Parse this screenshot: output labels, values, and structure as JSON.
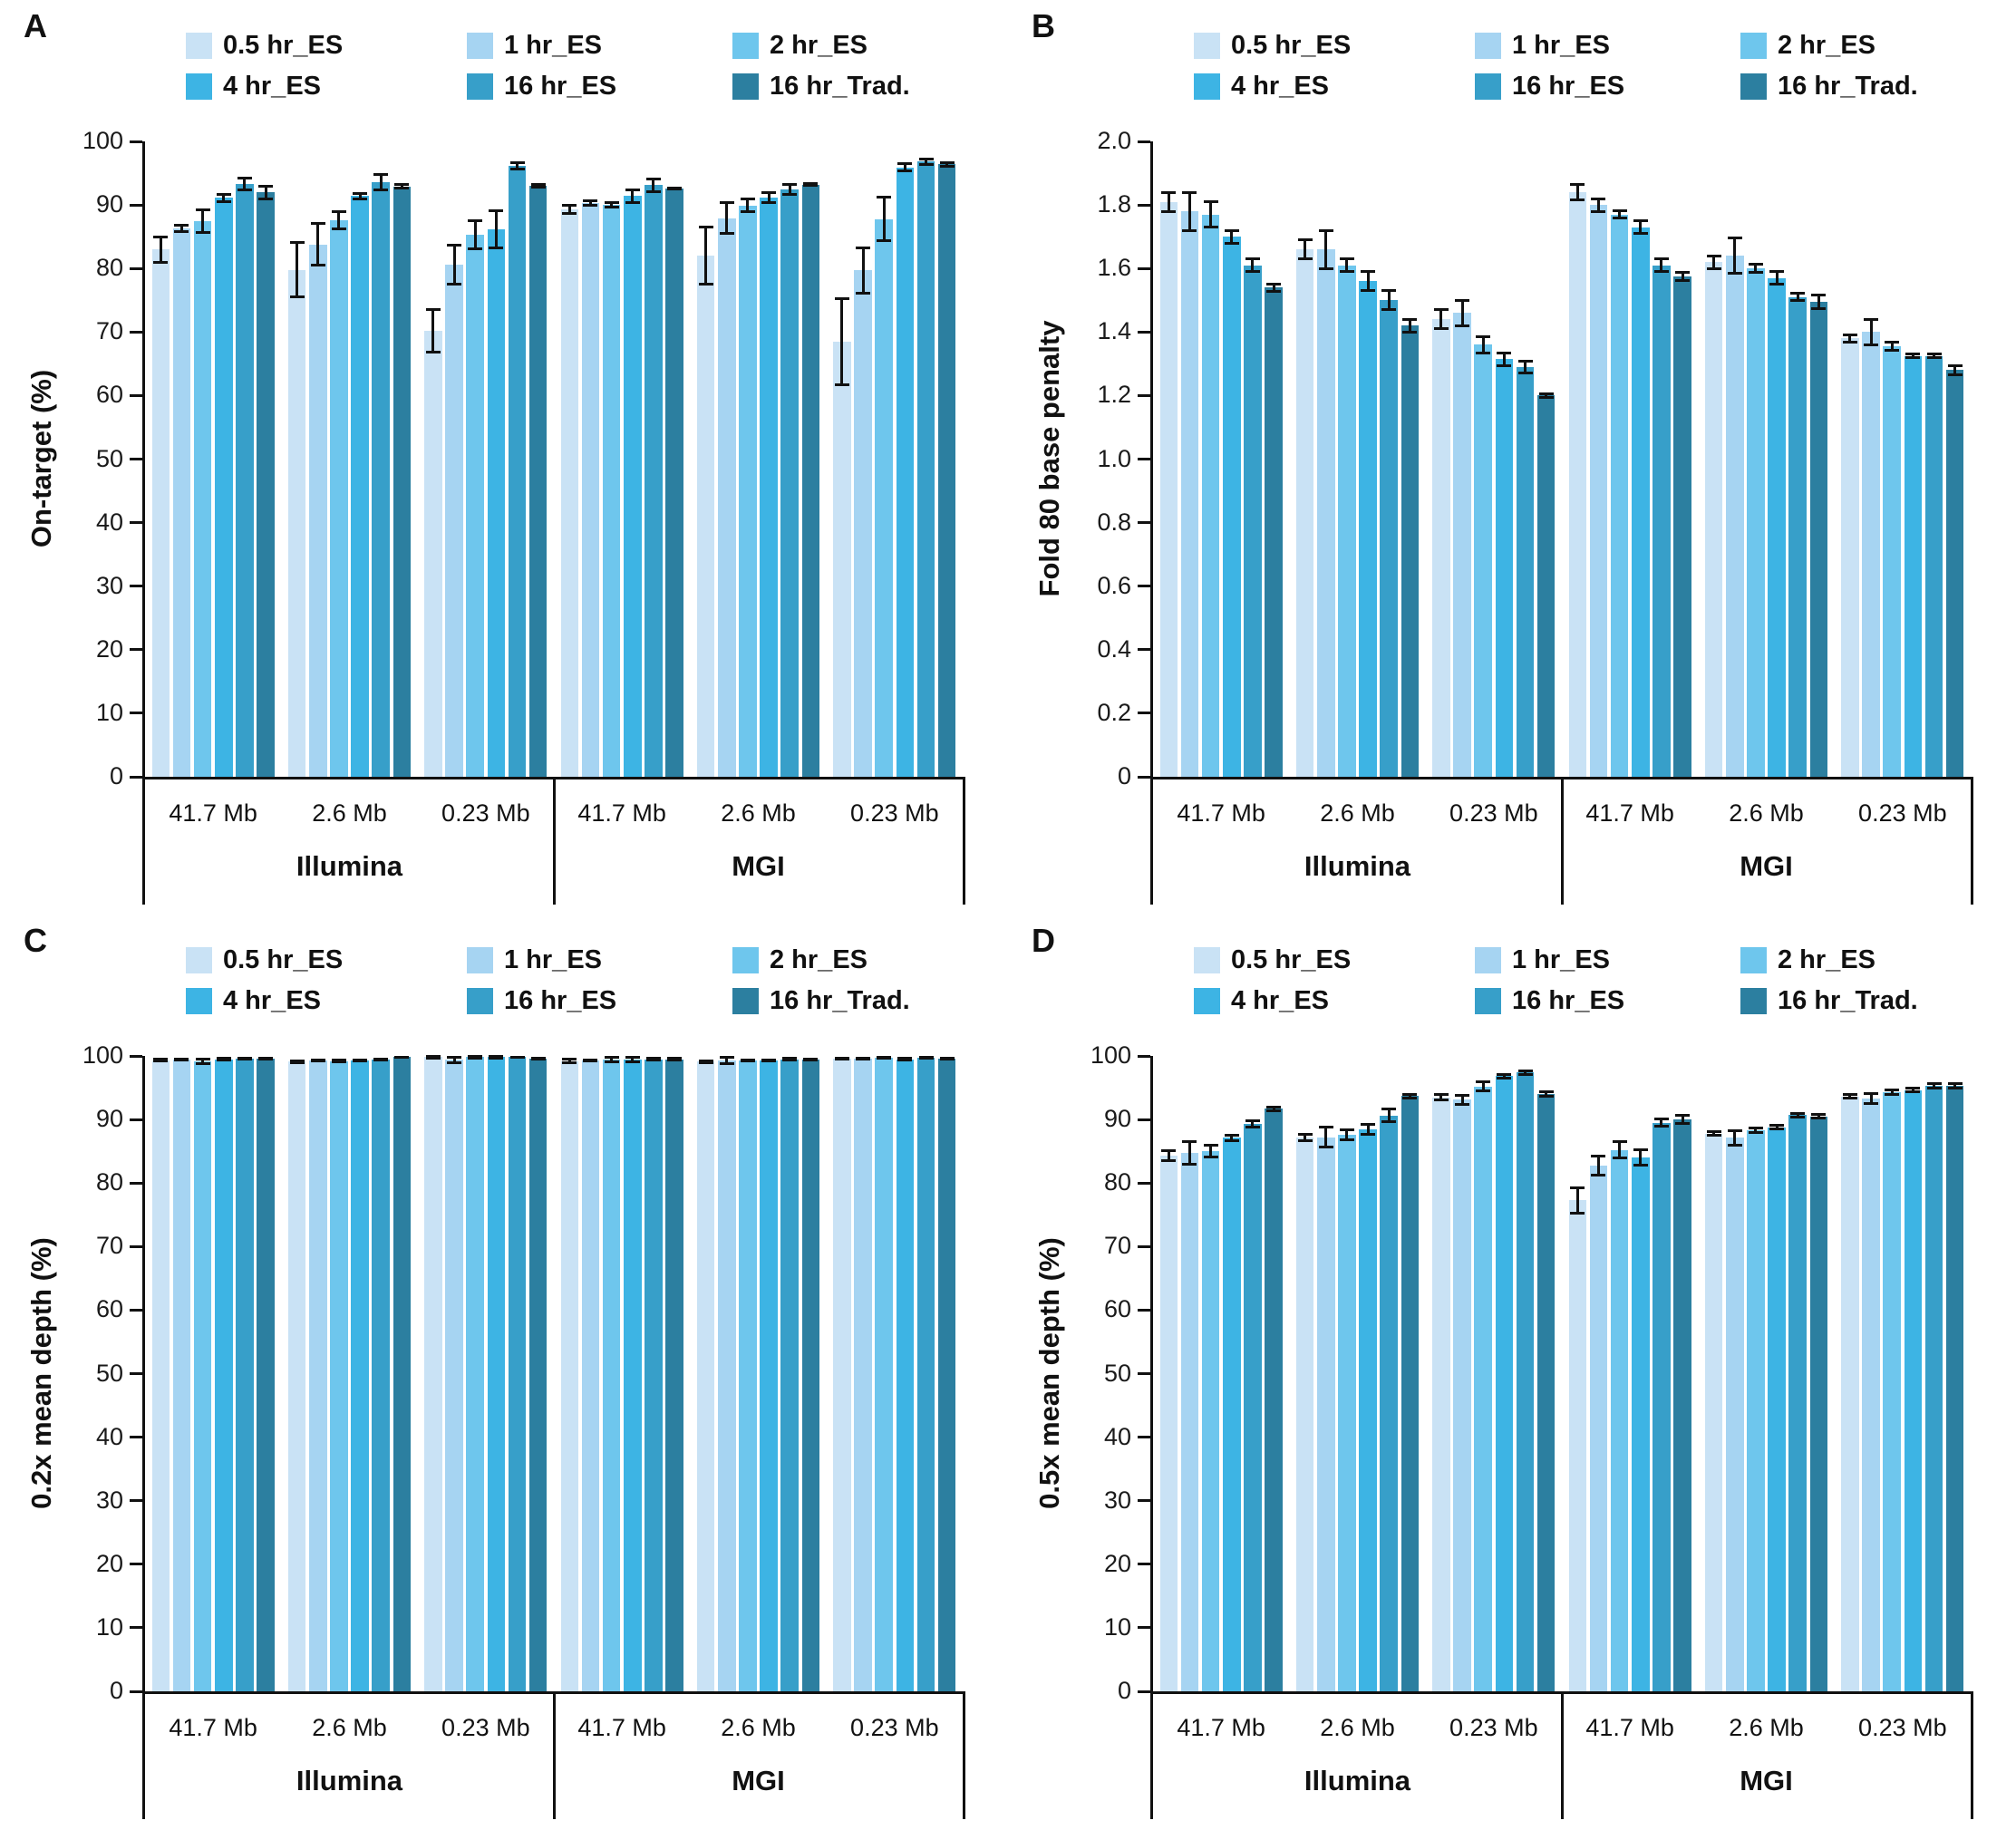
{
  "page": {
    "background": "#ffffff"
  },
  "legend": {
    "items": [
      {
        "label": "0.5 hr_ES",
        "color": "#c9e2f5"
      },
      {
        "label": "1 hr_ES",
        "color": "#a6d4f2"
      },
      {
        "label": "2 hr_ES",
        "color": "#6ec6ed"
      },
      {
        "label": "4 hr_ES",
        "color": "#3db4e4"
      },
      {
        "label": "16 hr_ES",
        "color": "#379fc9"
      },
      {
        "label": "16 hr_Trad.",
        "color": "#2c7fa0"
      }
    ]
  },
  "x_groups": {
    "sizes": [
      "41.7 Mb",
      "2.6 Mb",
      "0.23 Mb"
    ],
    "platforms": [
      "Illumina",
      "MGI"
    ]
  },
  "chart_data": [
    {
      "id": "A",
      "panel_letter": "A",
      "type": "bar",
      "ylabel": "On-target (%)",
      "ylim": [
        0,
        100
      ],
      "grid": false,
      "legend_position": "top",
      "ytick_labels": [
        "0",
        "10",
        "20",
        "30",
        "40",
        "50",
        "60",
        "70",
        "80",
        "90",
        "100"
      ],
      "categories": [
        "Illumina 41.7 Mb",
        "Illumina 2.6 Mb",
        "Illumina 0.23 Mb",
        "MGI 41.7 Mb",
        "MGI 2.6 Mb",
        "MGI 0.23 Mb"
      ],
      "series": [
        {
          "name": "0.5 hr_ES",
          "values": [
            83.0,
            79.8,
            70.2,
            89.3,
            82.0,
            68.5
          ],
          "errors": [
            2.0,
            4.3,
            3.3,
            0.6,
            4.5,
            6.8
          ]
        },
        {
          "name": "1 hr_ES",
          "values": [
            86.3,
            83.8,
            80.6,
            90.3,
            87.9,
            79.7
          ],
          "errors": [
            0.5,
            3.3,
            3.1,
            0.4,
            2.4,
            3.6
          ]
        },
        {
          "name": "2 hr_ES",
          "values": [
            87.4,
            87.6,
            85.3,
            90.0,
            89.9,
            87.8
          ],
          "errors": [
            1.8,
            1.4,
            2.2,
            0.3,
            1.0,
            3.4
          ]
        },
        {
          "name": "4 hr_ES",
          "values": [
            91.1,
            91.4,
            86.2,
            91.4,
            91.2,
            95.9
          ],
          "errors": [
            0.6,
            0.4,
            2.9,
            1.0,
            0.8,
            0.6
          ]
        },
        {
          "name": "16 hr_ES",
          "values": [
            93.3,
            93.6,
            96.2,
            93.1,
            92.4,
            96.8
          ],
          "errors": [
            0.9,
            1.2,
            0.5,
            1.0,
            0.8,
            0.4
          ]
        },
        {
          "name": "16 hr_Trad.",
          "values": [
            92.0,
            92.9,
            93.0,
            92.6,
            93.2,
            96.4
          ],
          "errors": [
            1.0,
            0.3,
            0.2,
            0.1,
            0.1,
            0.3
          ]
        }
      ]
    },
    {
      "id": "B",
      "panel_letter": "B",
      "type": "bar",
      "ylabel": "Fold 80 base penalty",
      "ylim": [
        0,
        2.0
      ],
      "grid": false,
      "legend_position": "top",
      "ytick_labels": [
        "0",
        "0.2",
        "0.4",
        "0.6",
        "0.8",
        "1.0",
        "1.2",
        "1.4",
        "1.6",
        "1.8",
        "2.0"
      ],
      "categories": [
        "Illumina 41.7 Mb",
        "Illumina 2.6 Mb",
        "Illumina 0.23 Mb",
        "MGI 41.7 Mb",
        "MGI 2.6 Mb",
        "MGI 0.23 Mb"
      ],
      "series": [
        {
          "name": "0.5 hr_ES",
          "values": [
            1.81,
            1.66,
            1.44,
            1.84,
            1.62,
            1.38
          ],
          "errors": [
            0.03,
            0.03,
            0.03,
            0.025,
            0.02,
            0.012
          ]
        },
        {
          "name": "1 hr_ES",
          "values": [
            1.78,
            1.66,
            1.46,
            1.8,
            1.64,
            1.4
          ],
          "errors": [
            0.06,
            0.06,
            0.04,
            0.02,
            0.055,
            0.04
          ]
        },
        {
          "name": "2 hr_ES",
          "values": [
            1.77,
            1.61,
            1.36,
            1.77,
            1.6,
            1.355
          ],
          "errors": [
            0.04,
            0.02,
            0.025,
            0.012,
            0.012,
            0.012
          ]
        },
        {
          "name": "4 hr_ES",
          "values": [
            1.7,
            1.56,
            1.315,
            1.73,
            1.57,
            1.325
          ],
          "errors": [
            0.02,
            0.03,
            0.02,
            0.02,
            0.02,
            0.005
          ]
        },
        {
          "name": "16 hr_ES",
          "values": [
            1.61,
            1.5,
            1.29,
            1.61,
            1.51,
            1.325
          ],
          "errors": [
            0.02,
            0.03,
            0.018,
            0.02,
            0.012,
            0.005
          ]
        },
        {
          "name": "16 hr_Trad.",
          "values": [
            1.54,
            1.42,
            1.2,
            1.575,
            1.495,
            1.28
          ],
          "errors": [
            0.012,
            0.02,
            0.005,
            0.012,
            0.02,
            0.015
          ]
        }
      ]
    },
    {
      "id": "C",
      "panel_letter": "C",
      "type": "bar",
      "ylabel": "0.2x mean depth (%)",
      "ylim": [
        0,
        100
      ],
      "grid": false,
      "legend_position": "top",
      "ytick_labels": [
        "0",
        "10",
        "20",
        "30",
        "40",
        "50",
        "60",
        "70",
        "80",
        "90",
        "100"
      ],
      "categories": [
        "Illumina 41.7 Mb",
        "Illumina 2.6 Mb",
        "Illumina 0.23 Mb",
        "MGI 41.7 Mb",
        "MGI 2.6 Mb",
        "MGI 0.23 Mb"
      ],
      "series": [
        {
          "name": "0.5 hr_ES",
          "values": [
            99.3,
            99.1,
            99.8,
            99.2,
            99.1,
            99.6
          ],
          "errors": [
            0.15,
            0.1,
            0.1,
            0.3,
            0.15,
            0.1
          ]
        },
        {
          "name": "1 hr_ES",
          "values": [
            99.4,
            99.3,
            99.4,
            99.3,
            99.3,
            99.6
          ],
          "errors": [
            0.1,
            0.1,
            0.45,
            0.1,
            0.45,
            0.1
          ]
        },
        {
          "name": "2 hr_ES",
          "values": [
            99.2,
            99.2,
            99.8,
            99.4,
            99.3,
            99.7
          ],
          "errors": [
            0.35,
            0.1,
            0.1,
            0.35,
            0.1,
            0.1
          ]
        },
        {
          "name": "4 hr_ES",
          "values": [
            99.5,
            99.3,
            99.8,
            99.4,
            99.3,
            99.5
          ],
          "errors": [
            0.1,
            0.1,
            0.1,
            0.35,
            0.1,
            0.1
          ]
        },
        {
          "name": "16 hr_ES",
          "values": [
            99.6,
            99.4,
            99.8,
            99.5,
            99.5,
            99.7
          ],
          "errors": [
            0.05,
            0.1,
            0.05,
            0.1,
            0.1,
            0.05
          ]
        },
        {
          "name": "16 hr_Trad.",
          "values": [
            99.6,
            99.8,
            99.6,
            99.5,
            99.4,
            99.6
          ],
          "errors": [
            0.05,
            0.05,
            0.1,
            0.1,
            0.1,
            0.05
          ]
        }
      ]
    },
    {
      "id": "D",
      "panel_letter": "D",
      "type": "bar",
      "ylabel": "0.5x mean depth (%)",
      "ylim": [
        0,
        100
      ],
      "grid": false,
      "legend_position": "top",
      "ytick_labels": [
        "0",
        "10",
        "20",
        "30",
        "40",
        "50",
        "60",
        "70",
        "80",
        "90",
        "100"
      ],
      "categories": [
        "Illumina 41.7 Mb",
        "Illumina 2.6 Mb",
        "Illumina 0.23 Mb",
        "MGI 41.7 Mb",
        "MGI 2.6 Mb",
        "MGI 0.23 Mb"
      ],
      "series": [
        {
          "name": "0.5 hr_ES",
          "values": [
            84.3,
            87.1,
            93.5,
            77.3,
            87.8,
            93.6
          ],
          "errors": [
            0.8,
            0.5,
            0.4,
            2.0,
            0.3,
            0.3
          ]
        },
        {
          "name": "1 hr_ES",
          "values": [
            84.7,
            87.2,
            93.1,
            82.8,
            87.1,
            93.3
          ],
          "errors": [
            1.8,
            1.6,
            0.7,
            1.5,
            1.2,
            0.8
          ]
        },
        {
          "name": "2 hr_ES",
          "values": [
            85.0,
            87.6,
            95.2,
            85.2,
            88.3,
            94.3
          ],
          "errors": [
            0.9,
            0.8,
            0.7,
            1.3,
            0.4,
            0.3
          ]
        },
        {
          "name": "4 hr_ES",
          "values": [
            87.1,
            88.4,
            96.8,
            84.0,
            88.8,
            94.6
          ],
          "errors": [
            0.4,
            0.8,
            0.3,
            1.2,
            0.3,
            0.3
          ]
        },
        {
          "name": "16 hr_ES",
          "values": [
            89.3,
            90.6,
            97.4,
            89.5,
            90.7,
            95.3
          ],
          "errors": [
            0.5,
            1.0,
            0.3,
            0.6,
            0.3,
            0.3
          ]
        },
        {
          "name": "16 hr_Trad.",
          "values": [
            91.7,
            93.7,
            94.0,
            90.0,
            90.5,
            95.3
          ],
          "errors": [
            0.3,
            0.3,
            0.3,
            0.6,
            0.3,
            0.3
          ]
        }
      ]
    }
  ]
}
